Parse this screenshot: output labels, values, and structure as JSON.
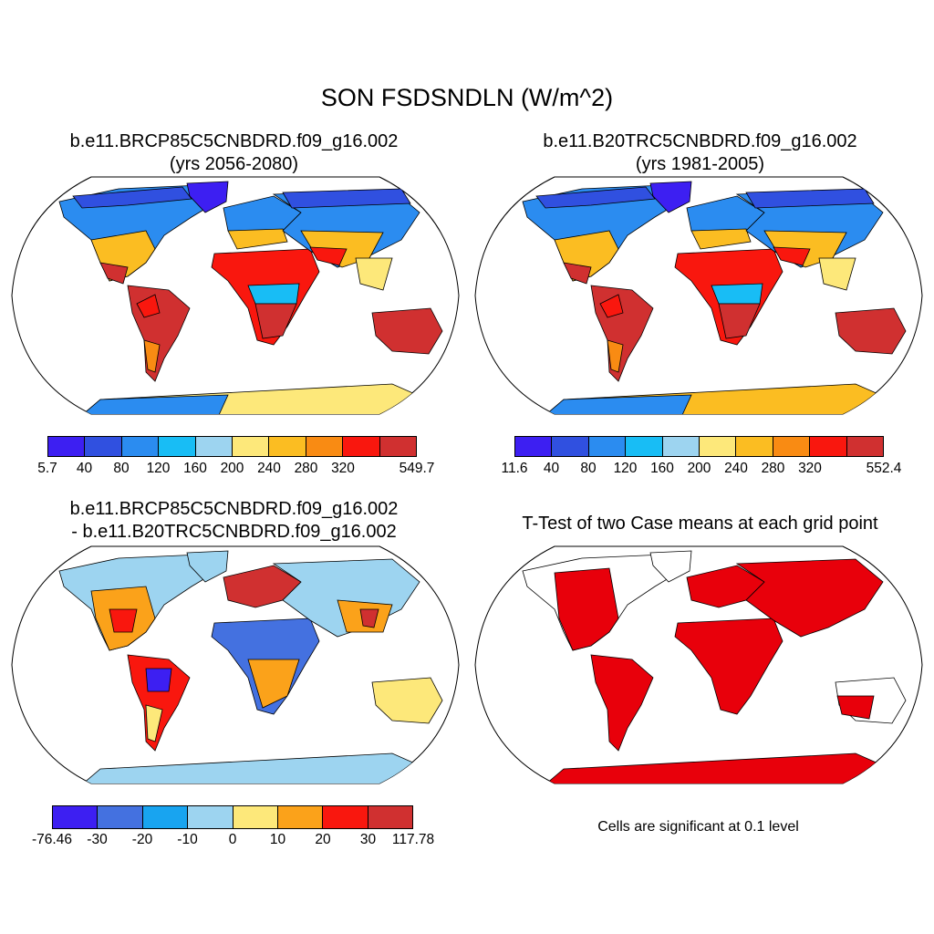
{
  "figure": {
    "title": "SON FSDSNDLN (W/m^2)"
  },
  "panels": {
    "p1": {
      "title_line1": "b.e11.BRCP85C5CNBDRD.f09_g16.002",
      "title_line2": "(yrs 2056-2080)",
      "colorbar": {
        "colors": [
          "#3d1ff2",
          "#3050e0",
          "#2b8cf0",
          "#18bdf5",
          "#9dd4f0",
          "#fde87a",
          "#fbbd22",
          "#f98b13",
          "#f9170e",
          "#d03030"
        ],
        "labels": [
          "5.7",
          "40",
          "80",
          "120",
          "160",
          "200",
          "240",
          "280",
          "320",
          "549.7"
        ]
      }
    },
    "p2": {
      "title_line1": "b.e11.B20TRC5CNBDRD.f09_g16.002",
      "title_line2": "(yrs 1981-2005)",
      "colorbar": {
        "colors": [
          "#3d1ff2",
          "#3050e0",
          "#2b8cf0",
          "#18bdf5",
          "#9dd4f0",
          "#fde87a",
          "#fbbd22",
          "#f98b13",
          "#f9170e",
          "#d03030"
        ],
        "labels": [
          "11.6",
          "40",
          "80",
          "120",
          "160",
          "200",
          "240",
          "280",
          "320",
          "552.4"
        ]
      }
    },
    "p3": {
      "title_line1": "b.e11.BRCP85C5CNBDRD.f09_g16.002",
      "title_line2": "- b.e11.B20TRC5CNBDRD.f09_g16.002",
      "colorbar": {
        "colors": [
          "#3d1ff2",
          "#4471e0",
          "#18a4f0",
          "#9dd4f0",
          "#fde87a",
          "#fba21a",
          "#f9170e",
          "#d03030"
        ],
        "labels": [
          "-76.46",
          "-30",
          "-20",
          "-10",
          "0",
          "10",
          "20",
          "30",
          "117.78"
        ]
      }
    },
    "p4": {
      "title": "T-Test of two Case means at each grid point",
      "note": "Cells are significant at 0.1 level",
      "significant_color": "#e8000b"
    }
  },
  "colors": {
    "ocean": "#ffffff",
    "coastline": "#000000"
  }
}
